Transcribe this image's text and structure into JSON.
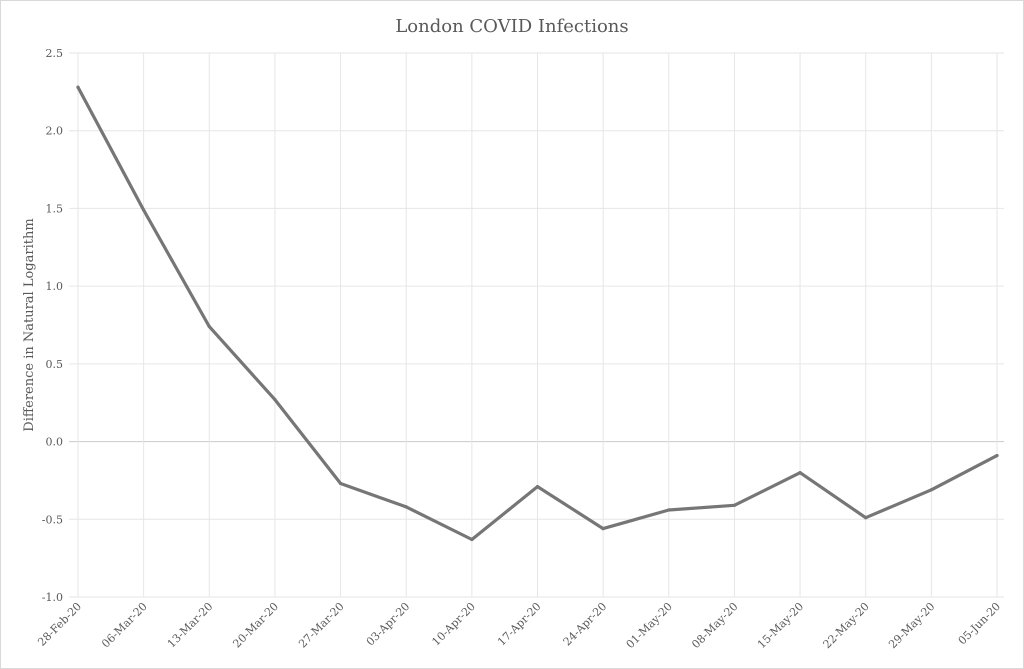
{
  "chart_data": {
    "type": "line",
    "title": "London COVID Infections",
    "xlabel": "",
    "ylabel": "Difference in Natural Logarithm",
    "x": [
      "28-Feb-20",
      "06-Mar-20",
      "13-Mar-20",
      "20-Mar-20",
      "27-Mar-20",
      "03-Apr-20",
      "10-Apr-20",
      "17-Apr-20",
      "24-Apr-20",
      "01-May-20",
      "08-May-20",
      "15-May-20",
      "22-May-20",
      "29-May-20",
      "05-Jun-20"
    ],
    "series": [
      {
        "values": [
          2.28,
          1.49,
          0.74,
          0.27,
          -0.27,
          -0.42,
          -0.63,
          -0.29,
          -0.56,
          -0.44,
          -0.41,
          -0.2,
          -0.49,
          -0.31,
          -0.09
        ]
      }
    ],
    "ylim": [
      -1.0,
      2.5
    ],
    "yticks": [
      "2.5",
      "2.0",
      "1.5",
      "1.0",
      "0.5",
      "0.0",
      "-0.5",
      "-1.0"
    ],
    "ytick_values": [
      2.5,
      2.0,
      1.5,
      1.0,
      0.5,
      0.0,
      -0.5,
      -1.0
    ],
    "grid": true,
    "legend": "none",
    "line_color": "#767676"
  }
}
